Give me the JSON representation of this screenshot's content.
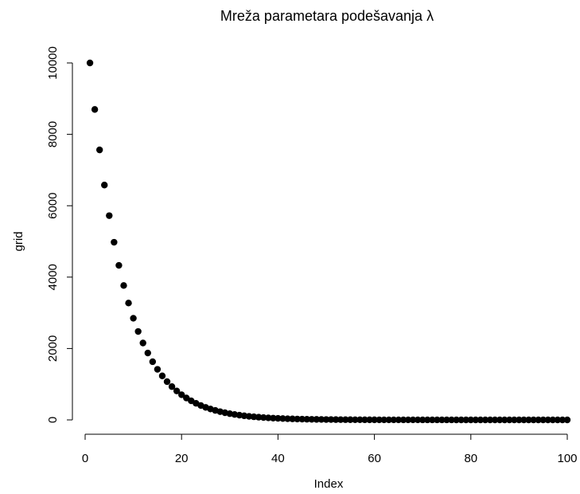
{
  "chart_data": {
    "type": "scatter",
    "title": "Mreža parametara podešavanja λ",
    "xlabel": "Index",
    "ylabel": "grid",
    "xlim": [
      1,
      100
    ],
    "ylim": [
      0,
      10000
    ],
    "x_ticks": [
      "0",
      "20",
      "40",
      "60",
      "80",
      "100"
    ],
    "y_ticks": [
      "0",
      "2000",
      "4000",
      "6000",
      "8000",
      "10000"
    ],
    "marker_color": "#000000",
    "grid": false,
    "series": [
      {
        "x": [
          1,
          2,
          3,
          4,
          5,
          6,
          7,
          8,
          9,
          10,
          11,
          12,
          13,
          14,
          15,
          16,
          17,
          18,
          19,
          20,
          21,
          22,
          23,
          24,
          25,
          26,
          27,
          28,
          29,
          30,
          31,
          32,
          33,
          34,
          35,
          36,
          37,
          38,
          39,
          40,
          41,
          42,
          43,
          44,
          45,
          46,
          47,
          48,
          49,
          50,
          51,
          52,
          53,
          54,
          55,
          56,
          57,
          58,
          59,
          60,
          61,
          62,
          63,
          64,
          65,
          66,
          67,
          68,
          69,
          70,
          71,
          72,
          73,
          74,
          75,
          76,
          77,
          78,
          79,
          80,
          81,
          82,
          83,
          84,
          85,
          86,
          87,
          88,
          89,
          90,
          91,
          92,
          93,
          94,
          95,
          96,
          97,
          98,
          99,
          100
        ],
        "values": [
          10000,
          8697,
          7564,
          6579,
          5722,
          4977,
          4329,
          3765,
          3274,
          2848,
          2477,
          2154,
          1874,
          1630,
          1417,
          1233,
          1072,
          932.6,
          811.1,
          705.5,
          613.6,
          533.7,
          464.2,
          403.7,
          351.1,
          305.4,
          265.6,
          231.0,
          200.9,
          174.8,
          152.0,
          132.2,
          115.0,
          100.0,
          86.97,
          75.64,
          65.79,
          57.22,
          49.77,
          43.29,
          37.65,
          32.74,
          28.48,
          24.77,
          21.54,
          18.74,
          16.3,
          14.17,
          12.33,
          10.72,
          9.33,
          8.11,
          7.06,
          6.14,
          5.34,
          4.64,
          4.04,
          3.51,
          3.05,
          2.66,
          2.31,
          2.01,
          1.75,
          1.52,
          1.32,
          1.15,
          1.0,
          0.87,
          0.76,
          0.66,
          0.57,
          0.5,
          0.43,
          0.38,
          0.33,
          0.29,
          0.25,
          0.22,
          0.19,
          0.16,
          0.14,
          0.12,
          0.11,
          0.09,
          0.08,
          0.07,
          0.06,
          0.05,
          0.05,
          0.04,
          0.03,
          0.03,
          0.03,
          0.02,
          0.02,
          0.02,
          0.02,
          0.01,
          0.01,
          0.01
        ]
      }
    ]
  }
}
